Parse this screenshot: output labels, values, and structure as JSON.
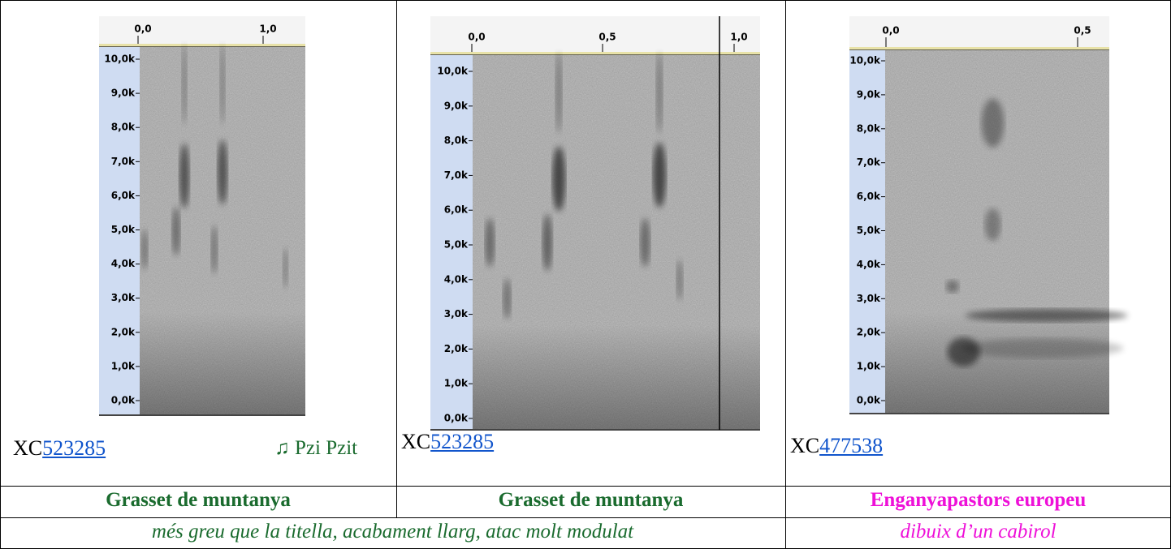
{
  "table": {
    "cells": [
      {
        "image": {
          "time_ticks": [
            "0,0",
            "1,0"
          ],
          "freq_ticks": [
            "10,0k",
            "9,0k",
            "8,0k",
            "7,0k",
            "6,0k",
            "5,0k",
            "4,0k",
            "3,0k",
            "2,0k",
            "1,0k",
            "0,0k"
          ]
        },
        "xc_prefix": "XC",
        "xc_number": "523285",
        "note": "♫ Pzi Pzit"
      },
      {
        "image": {
          "time_ticks": [
            "0,0",
            "0,5",
            "1,0"
          ],
          "freq_ticks": [
            "10,0k",
            "9,0k",
            "8,0k",
            "7,0k",
            "6,0k",
            "5,0k",
            "4,0k",
            "3,0k",
            "2,0k",
            "1,0k",
            "0,0k"
          ]
        },
        "xc_prefix": "XC",
        "xc_number": "523285"
      },
      {
        "image": {
          "time_ticks": [
            "0,0",
            "0,5"
          ],
          "freq_ticks": [
            "10,0k",
            "9,0k",
            "8,0k",
            "7,0k",
            "6,0k",
            "5,0k",
            "4,0k",
            "3,0k",
            "2,0k",
            "1,0k",
            "0,0k"
          ]
        },
        "xc_prefix": "XC",
        "xc_number": "477538"
      }
    ],
    "names": [
      "Grasset de muntanya",
      "Grasset de muntanya",
      "Enganyapastors europeu"
    ],
    "descriptions": [
      "més greu que la titella, acabament llarg, atac molt modulat",
      "dibuix d’un cabirol"
    ]
  }
}
